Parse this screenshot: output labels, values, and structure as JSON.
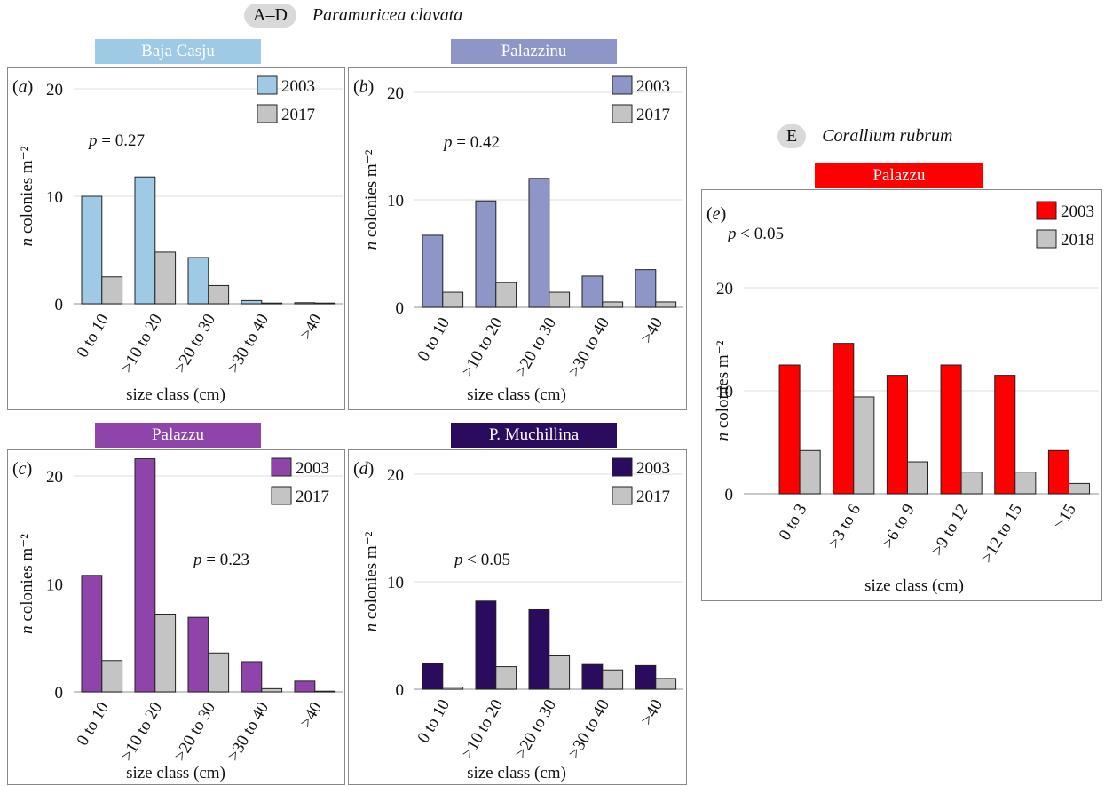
{
  "groups": [
    {
      "badge": "A–D",
      "species": "Paramuricea clavata"
    },
    {
      "badge": "E",
      "species": "Corallium rubrum"
    }
  ],
  "chart_data": [
    {
      "type": "bar",
      "panel_label": "(a)",
      "site": "Baja Casju",
      "site_color": "#9ecae6",
      "categories": [
        "0 to 10",
        ">10 to 20",
        ">20 to 30",
        ">30 to 40",
        ">40"
      ],
      "series": [
        {
          "name": "2003",
          "color": "#9ecae6",
          "values": [
            10.0,
            11.8,
            4.3,
            0.3,
            0.1
          ]
        },
        {
          "name": "2017",
          "color": "#c4c4c4",
          "values": [
            2.5,
            4.8,
            1.7,
            0.05,
            0.03
          ]
        }
      ],
      "yticks": [
        0,
        10,
        20
      ],
      "ylim": [
        0,
        20
      ],
      "p_value": "p = 0.27",
      "xlabel": "size class (cm)",
      "ylabel": "n colonies m⁻²"
    },
    {
      "type": "bar",
      "panel_label": "(b)",
      "site": "Palazzinu",
      "site_color": "#8e96c8",
      "categories": [
        "0 to 10",
        ">10 to 20",
        ">20 to 30",
        ">30 to 40",
        ">40"
      ],
      "series": [
        {
          "name": "2003",
          "color": "#8e96c8",
          "values": [
            6.7,
            9.9,
            12.0,
            2.9,
            3.5
          ]
        },
        {
          "name": "2017",
          "color": "#c4c4c4",
          "values": [
            1.4,
            2.3,
            1.4,
            0.5,
            0.5
          ]
        }
      ],
      "yticks": [
        0,
        10,
        20
      ],
      "ylim": [
        0,
        20
      ],
      "p_value": "p = 0.42",
      "xlabel": "size class (cm)",
      "ylabel": "n colonies m⁻²"
    },
    {
      "type": "bar",
      "panel_label": "(c)",
      "site": "Palazzu",
      "site_color": "#8e44a8",
      "categories": [
        "0 to 10",
        ">10 to 20",
        ">20 to 30",
        ">30 to 40",
        ">40"
      ],
      "series": [
        {
          "name": "2003",
          "color": "#8e44a8",
          "values": [
            10.8,
            21.6,
            6.9,
            2.8,
            1.0
          ]
        },
        {
          "name": "2017",
          "color": "#c4c4c4",
          "values": [
            2.9,
            7.2,
            3.6,
            0.3,
            0.05
          ]
        }
      ],
      "yticks": [
        0,
        10,
        20
      ],
      "ylim": [
        0,
        20
      ],
      "p_value": "p = 0.23",
      "xlabel": "size class (cm)",
      "ylabel": "n colonies m⁻²"
    },
    {
      "type": "bar",
      "panel_label": "(d)",
      "site": "P. Muchillina",
      "site_color": "#2b0b5e",
      "categories": [
        "0 to 10",
        ">10 to 20",
        ">20 to 30",
        ">30 to 40",
        ">40"
      ],
      "series": [
        {
          "name": "2003",
          "color": "#2b0b5e",
          "values": [
            2.4,
            8.2,
            7.4,
            2.3,
            2.2
          ]
        },
        {
          "name": "2017",
          "color": "#c4c4c4",
          "values": [
            0.2,
            2.1,
            3.1,
            1.8,
            1.0
          ]
        }
      ],
      "yticks": [
        0,
        10,
        20
      ],
      "ylim": [
        0,
        20
      ],
      "p_value": "p < 0.05",
      "xlabel": "size class (cm)",
      "ylabel": "n colonies m⁻²"
    },
    {
      "type": "bar",
      "panel_label": "(e)",
      "site": "Palazzu",
      "site_color": "#ff0000",
      "categories": [
        "0 to 3",
        ">3 to 6",
        ">6 to 9",
        ">9 to 12",
        ">12 to 15",
        ">15"
      ],
      "series": [
        {
          "name": "2003",
          "color": "#ff0000",
          "values": [
            12.5,
            14.6,
            11.5,
            12.5,
            11.5,
            4.2
          ]
        },
        {
          "name": "2018",
          "color": "#c4c4c4",
          "values": [
            4.2,
            9.4,
            3.1,
            2.1,
            2.1,
            1.0
          ]
        }
      ],
      "yticks": [
        0,
        10,
        20
      ],
      "ylim": [
        0,
        20
      ],
      "p_value": "p < 0.05",
      "xlabel": "size class (cm)",
      "ylabel": "n colonies m⁻²"
    }
  ]
}
